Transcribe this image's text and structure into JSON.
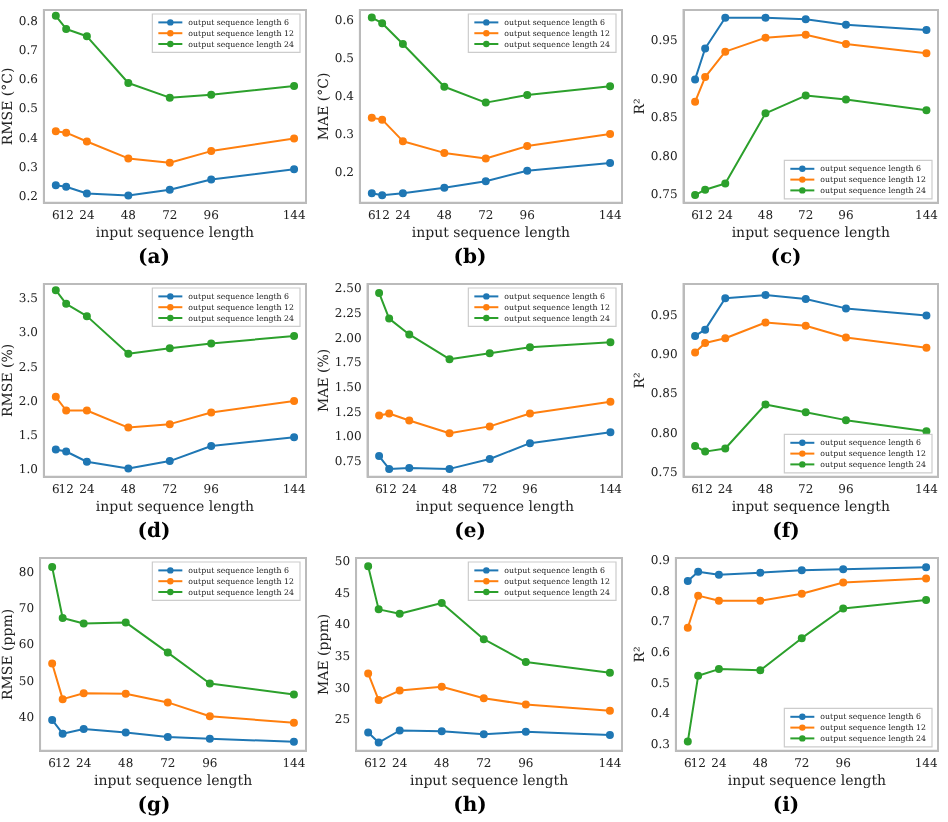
{
  "chart_data": [
    {
      "type": "line",
      "title": "(a)",
      "xlabel": "input sequence length",
      "ylabel": "RMSE (°C)",
      "x": [
        6,
        12,
        24,
        48,
        72,
        96,
        144
      ],
      "xlim": [
        -0.9,
        150.9
      ],
      "xticks": [
        6,
        12,
        24,
        48,
        72,
        96,
        144
      ],
      "ylim": [
        0.18,
        0.84
      ],
      "yticks": [
        {
          "value": 0.2,
          "label": "0.2"
        },
        {
          "value": 0.3,
          "label": "0.3"
        },
        {
          "value": 0.4,
          "label": "0.4"
        },
        {
          "value": 0.5,
          "label": "0.5"
        },
        {
          "value": 0.6,
          "label": "0.6"
        },
        {
          "value": 0.7,
          "label": "0.7"
        },
        {
          "value": 0.8,
          "label": "0.8"
        }
      ],
      "legend": "top right",
      "grid": false,
      "marker": "circle",
      "line_style": "solid",
      "series": [
        {
          "name": "output sequence length 6",
          "color": "#1f77b4",
          "values": [
            0.24,
            0.235,
            0.212,
            0.205,
            0.225,
            0.26,
            0.295
          ]
        },
        {
          "name": "output sequence length 12",
          "color": "#ff7f0e",
          "values": [
            0.425,
            0.42,
            0.39,
            0.332,
            0.317,
            0.357,
            0.4
          ]
        },
        {
          "name": "output sequence length 24",
          "color": "#2ca02c",
          "values": [
            0.82,
            0.775,
            0.75,
            0.59,
            0.54,
            0.55,
            0.58
          ]
        }
      ]
    },
    {
      "type": "line",
      "title": "(b)",
      "xlabel": "input sequence length",
      "ylabel": "MAE (°C)",
      "x": [
        6,
        12,
        24,
        48,
        72,
        96,
        144
      ],
      "xlim": [
        -0.9,
        150.9
      ],
      "xticks": [
        6,
        12,
        24,
        48,
        72,
        96,
        144
      ],
      "ylim": [
        0.12,
        0.63
      ],
      "yticks": [
        0.2,
        0.3,
        0.4,
        0.5,
        0.6
      ],
      "legend": "top right",
      "grid": false,
      "marker": "circle",
      "line_style": "solid",
      "series": [
        {
          "name": "output sequence length 6",
          "color": "#1f77b4",
          "values": [
            0.145,
            0.14,
            0.145,
            0.16,
            0.177,
            0.205,
            0.225
          ]
        },
        {
          "name": "output sequence length 12",
          "color": "#ff7f0e",
          "values": [
            0.345,
            0.34,
            0.283,
            0.252,
            0.237,
            0.27,
            0.302
          ]
        },
        {
          "name": "output sequence length 24",
          "color": "#2ca02c",
          "values": [
            0.61,
            0.595,
            0.54,
            0.427,
            0.385,
            0.405,
            0.428
          ]
        }
      ]
    },
    {
      "type": "line",
      "title": "(c)",
      "xlabel": "input sequence length",
      "ylabel": "R²",
      "x": [
        6,
        12,
        24,
        48,
        72,
        96,
        144
      ],
      "xlim": [
        -0.9,
        150.9
      ],
      "xticks": [
        6,
        12,
        24,
        48,
        72,
        96,
        144
      ],
      "ylim": [
        0.74,
        0.99
      ],
      "yticks": [
        {
          "value": 0.75,
          "label": "0.75"
        },
        {
          "value": 0.8,
          "label": "0.80"
        },
        {
          "value": 0.85,
          "label": "0.85"
        },
        {
          "value": 0.9,
          "label": "0.90"
        },
        {
          "value": 0.95,
          "label": "0.95"
        }
      ],
      "legend": "bottom right",
      "grid": false,
      "marker": "circle",
      "line_style": "solid",
      "series": [
        {
          "name": "output sequence length 6",
          "color": "#1f77b4",
          "values": [
            0.9,
            0.94,
            0.98,
            0.98,
            0.978,
            0.971,
            0.964
          ]
        },
        {
          "name": "output sequence length 12",
          "color": "#ff7f0e",
          "values": [
            0.871,
            0.903,
            0.936,
            0.954,
            0.958,
            0.946,
            0.934
          ]
        },
        {
          "name": "output sequence length 24",
          "color": "#2ca02c",
          "values": [
            0.75,
            0.757,
            0.765,
            0.856,
            0.879,
            0.874,
            0.86
          ]
        }
      ]
    },
    {
      "type": "line",
      "title": "(d)",
      "xlabel": "input sequence length",
      "ylabel": "RMSE (%)",
      "x": [
        6,
        12,
        24,
        48,
        72,
        96,
        144
      ],
      "xlim": [
        -0.9,
        150.9
      ],
      "xticks": [
        6,
        12,
        24,
        48,
        72,
        96,
        144
      ],
      "ylim": [
        0.9,
        3.72
      ],
      "yticks": [
        {
          "value": 1,
          "label": "1.0"
        },
        {
          "value": 1.5,
          "label": "1.5"
        },
        {
          "value": 2,
          "label": "2.0"
        },
        {
          "value": 2.5,
          "label": "2.5"
        },
        {
          "value": 3,
          "label": "3.0"
        },
        {
          "value": 3.5,
          "label": "3.5"
        }
      ],
      "legend": "top right",
      "grid": false,
      "marker": "circle",
      "line_style": "solid",
      "series": [
        {
          "name": "output sequence length 6",
          "color": "#1f77b4",
          "values": [
            1.3,
            1.27,
            1.12,
            1.02,
            1.13,
            1.35,
            1.48
          ]
        },
        {
          "name": "output sequence length 12",
          "color": "#ff7f0e",
          "values": [
            2.07,
            1.87,
            1.87,
            1.62,
            1.67,
            1.84,
            2.01
          ]
        },
        {
          "name": "output sequence length 24",
          "color": "#2ca02c",
          "values": [
            3.63,
            3.43,
            3.25,
            2.7,
            2.78,
            2.85,
            2.96
          ]
        }
      ]
    },
    {
      "type": "line",
      "title": "(e)",
      "xlabel": "input sequence length",
      "ylabel": "MAE (%)",
      "x": [
        6,
        12,
        24,
        48,
        72,
        96,
        144
      ],
      "xlim": [
        -0.9,
        150.9
      ],
      "xticks": [
        6,
        12,
        24,
        48,
        72,
        96,
        144
      ],
      "ylim": [
        0.6,
        2.55
      ],
      "yticks": [
        {
          "value": 0.75,
          "label": "0.75"
        },
        {
          "value": 1,
          "label": "1.00"
        },
        {
          "value": 1.25,
          "label": "1.25"
        },
        {
          "value": 1.5,
          "label": "1.50"
        },
        {
          "value": 1.75,
          "label": "1.75"
        },
        {
          "value": 2,
          "label": "2.00"
        },
        {
          "value": 2.25,
          "label": "2.25"
        },
        {
          "value": 2.5,
          "label": "2.50"
        }
      ],
      "legend": "top right",
      "grid": false,
      "marker": "circle",
      "line_style": "solid",
      "series": [
        {
          "name": "output sequence length 6",
          "color": "#1f77b4",
          "values": [
            0.81,
            0.68,
            0.69,
            0.68,
            0.78,
            0.94,
            1.05
          ]
        },
        {
          "name": "output sequence length 12",
          "color": "#ff7f0e",
          "values": [
            1.22,
            1.24,
            1.17,
            1.04,
            1.11,
            1.24,
            1.36
          ]
        },
        {
          "name": "output sequence length 24",
          "color": "#2ca02c",
          "values": [
            2.46,
            2.2,
            2.04,
            1.79,
            1.85,
            1.91,
            1.96
          ]
        }
      ]
    },
    {
      "type": "line",
      "title": "(f)",
      "xlabel": "input sequence length",
      "ylabel": "R²",
      "x": [
        6,
        12,
        24,
        48,
        72,
        96,
        144
      ],
      "xlim": [
        -0.9,
        150.9
      ],
      "xticks": [
        6,
        12,
        24,
        48,
        72,
        96,
        144
      ],
      "ylim": [
        0.745,
        0.99
      ],
      "yticks": [
        {
          "value": 0.75,
          "label": "0.75"
        },
        {
          "value": 0.8,
          "label": "0.80"
        },
        {
          "value": 0.85,
          "label": "0.85"
        },
        {
          "value": 0.9,
          "label": "0.90"
        },
        {
          "value": 0.95,
          "label": "0.95"
        }
      ],
      "legend": "bottom right",
      "grid": false,
      "marker": "circle",
      "line_style": "solid",
      "series": [
        {
          "name": "output sequence length 6",
          "color": "#1f77b4",
          "values": [
            0.924,
            0.932,
            0.972,
            0.976,
            0.971,
            0.959,
            0.95
          ]
        },
        {
          "name": "output sequence length 12",
          "color": "#ff7f0e",
          "values": [
            0.903,
            0.915,
            0.921,
            0.941,
            0.937,
            0.922,
            0.909
          ]
        },
        {
          "name": "output sequence length 24",
          "color": "#2ca02c",
          "values": [
            0.784,
            0.777,
            0.781,
            0.837,
            0.827,
            0.817,
            0.803
          ]
        }
      ]
    },
    {
      "type": "line",
      "title": "(g)",
      "xlabel": "input sequence length",
      "ylabel": "RMSE (ppm)",
      "x": [
        6,
        12,
        24,
        48,
        72,
        96,
        144
      ],
      "xlim": [
        -0.9,
        150.9
      ],
      "xticks": [
        6,
        12,
        24,
        48,
        72,
        96,
        144
      ],
      "ylim": [
        31,
        84
      ],
      "yticks": [
        40,
        50,
        60,
        70,
        80
      ],
      "legend": "top right",
      "grid": false,
      "marker": "circle",
      "line_style": "solid",
      "series": [
        {
          "name": "output sequence length 6",
          "color": "#1f77b4",
          "values": [
            39.5,
            35.7,
            37,
            36,
            34.8,
            34.3,
            33.5
          ]
        },
        {
          "name": "output sequence length 12",
          "color": "#ff7f0e",
          "values": [
            55,
            45.2,
            46.8,
            46.7,
            44.3,
            40.5,
            38.7
          ]
        },
        {
          "name": "output sequence length 24",
          "color": "#2ca02c",
          "values": [
            81.5,
            67.5,
            66,
            66.3,
            58,
            49.5,
            46.5
          ]
        }
      ]
    },
    {
      "type": "line",
      "title": "(h)",
      "xlabel": "input sequence length",
      "ylabel": "MAE (ppm)",
      "x": [
        6,
        12,
        24,
        48,
        72,
        96,
        144
      ],
      "xlim": [
        -0.9,
        150.9
      ],
      "xticks": [
        6,
        12,
        24,
        48,
        72,
        96,
        144
      ],
      "ylim": [
        20.2,
        50.6
      ],
      "yticks": [
        25,
        30,
        35,
        40,
        45,
        50
      ],
      "legend": "top right",
      "grid": false,
      "marker": "circle",
      "line_style": "solid",
      "series": [
        {
          "name": "output sequence length 6",
          "color": "#1f77b4",
          "values": [
            23.1,
            21.5,
            23.4,
            23.3,
            22.8,
            23.2,
            22.7
          ]
        },
        {
          "name": "output sequence length 12",
          "color": "#ff7f0e",
          "values": [
            32.4,
            28.2,
            29.7,
            30.3,
            28.5,
            27.5,
            26.5
          ]
        },
        {
          "name": "output sequence length 24",
          "color": "#2ca02c",
          "values": [
            49.3,
            42.5,
            41.8,
            43.5,
            37.8,
            34.2,
            32.5
          ]
        }
      ]
    },
    {
      "type": "line",
      "title": "(i)",
      "xlabel": "input sequence length",
      "ylabel": "R²",
      "x": [
        6,
        12,
        24,
        48,
        72,
        96,
        144
      ],
      "xlim": [
        -0.9,
        150.9
      ],
      "xticks": [
        6,
        12,
        24,
        48,
        72,
        96,
        144
      ],
      "ylim": [
        0.28,
        0.91
      ],
      "yticks": [
        0.3,
        0.4,
        0.5,
        0.6,
        0.7,
        0.8,
        0.9
      ],
      "legend": "bottom right",
      "grid": false,
      "marker": "circle",
      "line_style": "solid",
      "series": [
        {
          "name": "output sequence length 6",
          "color": "#1f77b4",
          "values": [
            0.835,
            0.865,
            0.855,
            0.862,
            0.87,
            0.873,
            0.88
          ]
        },
        {
          "name": "output sequence length 12",
          "color": "#ff7f0e",
          "values": [
            0.682,
            0.787,
            0.77,
            0.77,
            0.793,
            0.83,
            0.843
          ]
        },
        {
          "name": "output sequence length 24",
          "color": "#2ca02c",
          "values": [
            0.31,
            0.525,
            0.547,
            0.543,
            0.648,
            0.745,
            0.773
          ]
        }
      ]
    }
  ]
}
